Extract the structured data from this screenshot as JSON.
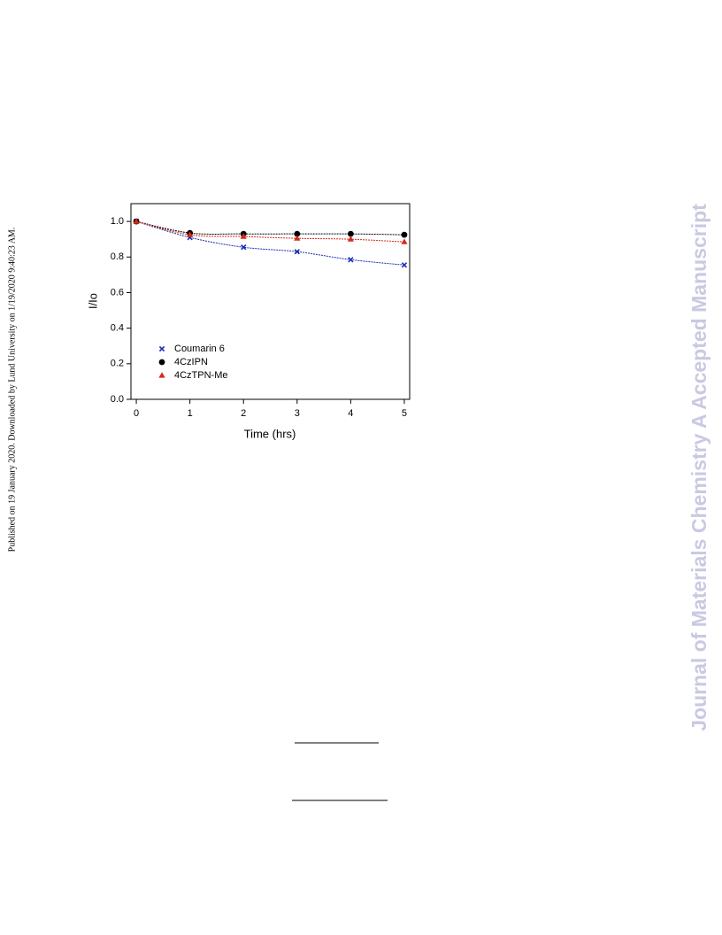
{
  "side_note": "Published on 19 January 2020. Downloaded by Lund University on 1/19/2020 9:40:23 AM.",
  "watermark": "Journal of Materials Chemistry A Accepted Manuscript",
  "chart_data": {
    "type": "line",
    "xlabel": "Time (hrs)",
    "ylabel": "I/Io",
    "x": [
      0,
      1,
      2,
      3,
      4,
      5
    ],
    "series": [
      {
        "name": "Coumarin 6",
        "color": "#1a2db5",
        "marker": "x",
        "values": [
          1.0,
          0.91,
          0.855,
          0.83,
          0.785,
          0.755
        ]
      },
      {
        "name": "4CzIPN",
        "color": "#000000",
        "marker": "circle",
        "values": [
          1.0,
          0.935,
          0.93,
          0.93,
          0.93,
          0.925
        ]
      },
      {
        "name": "4CzTPN-Me",
        "color": "#d42a1a",
        "marker": "triangle",
        "values": [
          1.0,
          0.925,
          0.915,
          0.905,
          0.9,
          0.885
        ]
      }
    ],
    "xlim": [
      -0.1,
      5.1
    ],
    "ylim": [
      0,
      1.1
    ],
    "xticks": [
      0,
      1,
      2,
      3,
      4,
      5
    ],
    "yticks": [
      {
        "value": 0,
        "label": "0.0"
      },
      0.2,
      0.4,
      0.6,
      0.8,
      {
        "value": 1,
        "label": "1.0"
      }
    ],
    "legend": "lower left",
    "grid": false
  }
}
